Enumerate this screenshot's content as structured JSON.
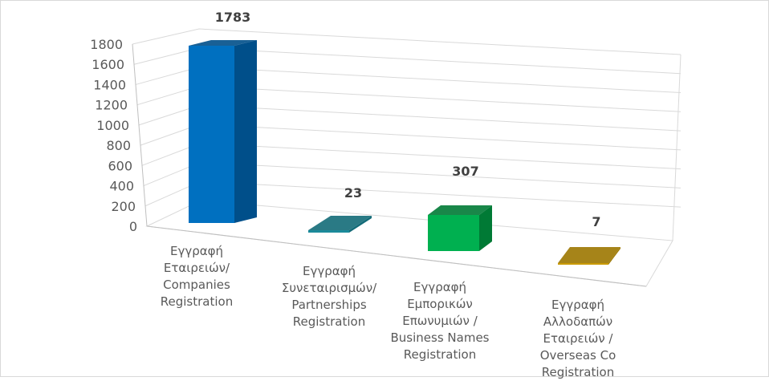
{
  "chart_data": {
    "type": "bar",
    "style": "3d-column",
    "title": "",
    "xlabel": "",
    "ylabel": "",
    "ylim": [
      0,
      1800
    ],
    "yticks": [
      0,
      200,
      400,
      600,
      800,
      1000,
      1200,
      1400,
      1600,
      1800
    ],
    "grid": true,
    "legend": "none",
    "categories": [
      [
        "Εγγραφή",
        "Εταιρειών/",
        "Companies",
        "Registration"
      ],
      [
        "Εγγραφή",
        "Συνεταιρισμών/",
        "Partnerships",
        "Registration"
      ],
      [
        "Εγγραφή",
        "Εμπορικών",
        "Επωνυμιών /",
        "Business Names",
        "Registration"
      ],
      [
        "Εγγραφή",
        "Αλλοδαπών",
        "Εταιρειών /",
        "Overseas Co",
        "Registration"
      ]
    ],
    "values": [
      1783,
      23,
      307,
      7
    ],
    "data_labels": [
      "1783",
      "23",
      "307",
      "7"
    ],
    "colors": [
      "#0070c0",
      "#1b8a9a",
      "#00b050",
      "#c99a00"
    ],
    "side_colors": [
      "#004f8a",
      "#136b78",
      "#007a35",
      "#9c7700"
    ]
  }
}
